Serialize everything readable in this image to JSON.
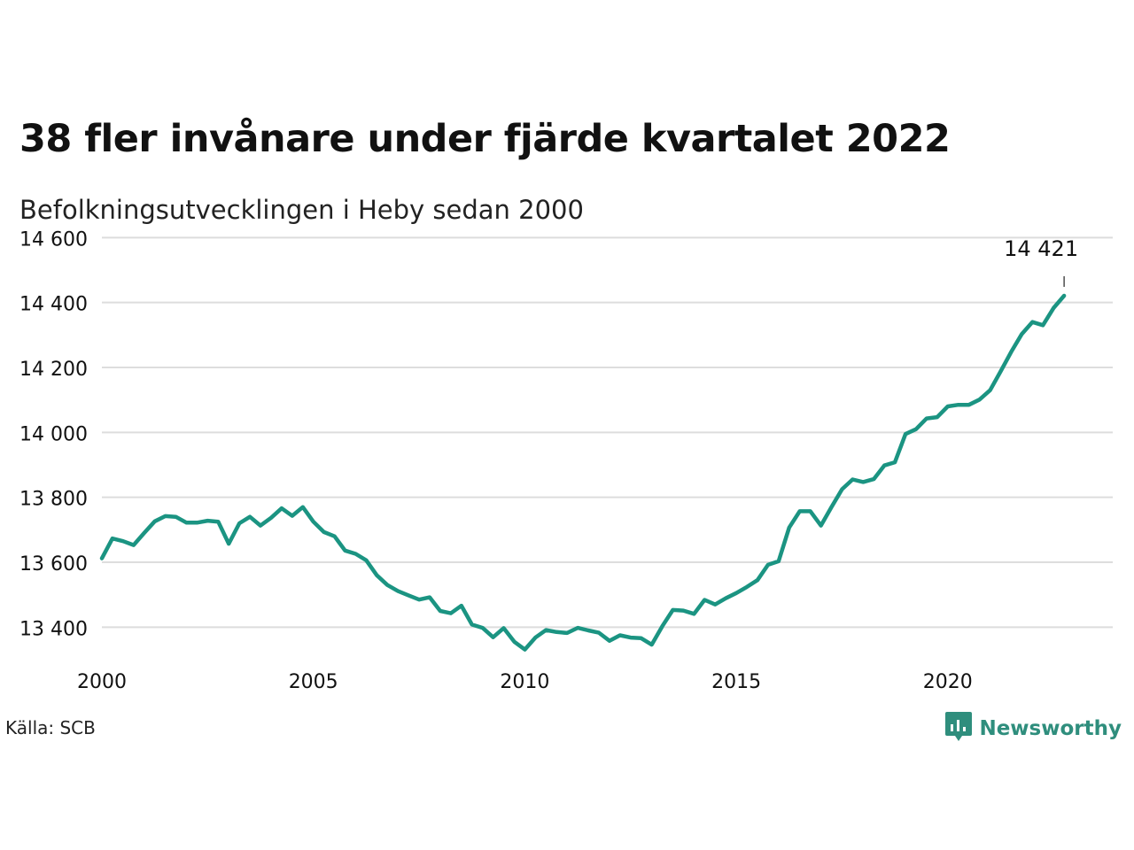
{
  "header": {
    "title": "38 fler invånare under fjärde kvartalet 2022",
    "subtitle": "Befolkningsutvecklingen i Heby sedan 2000"
  },
  "footer": {
    "source": "Källa: SCB",
    "brand": "Newsworthy"
  },
  "colors": {
    "line": "#1b9482",
    "grid": "#dddddd",
    "brand": "#2f8e7d"
  },
  "chart_data": {
    "type": "line",
    "title": "38 fler invånare under fjärde kvartalet 2022",
    "subtitle": "Befolkningsutvecklingen i Heby sedan 2000",
    "xlabel": "",
    "ylabel": "",
    "xlim": [
      2000,
      2023.9
    ],
    "ylim": [
      13300,
      14650
    ],
    "x_ticks": [
      2000,
      2005,
      2010,
      2015,
      2020
    ],
    "y_ticks": [
      13400,
      13600,
      13800,
      14000,
      14200,
      14400,
      14600
    ],
    "y_tick_labels": [
      "13 400",
      "13 600",
      "13 800",
      "14 000",
      "14 200",
      "14 400",
      "14 600"
    ],
    "grid": "horizontal",
    "end_annotation": "14 421",
    "series": [
      {
        "x": [
          2000.0,
          2000.25,
          2000.5,
          2000.75,
          2001.0,
          2001.25,
          2001.5,
          2001.75,
          2002.0,
          2002.25,
          2002.5,
          2002.75,
          2003.0,
          2003.25,
          2003.5,
          2003.75,
          2004.0,
          2004.25,
          2004.5,
          2004.75,
          2005.0,
          2005.25,
          2005.5,
          2005.75,
          2006.0,
          2006.25,
          2006.5,
          2006.75,
          2007.0,
          2007.25,
          2007.5,
          2007.75,
          2008.0,
          2008.25,
          2008.5,
          2008.75,
          2009.0,
          2009.25,
          2009.5,
          2009.75,
          2010.0,
          2010.25,
          2010.5,
          2010.75,
          2011.0,
          2011.25,
          2011.5,
          2011.75,
          2012.0,
          2012.25,
          2012.5,
          2012.75,
          2013.0,
          2013.25,
          2013.5,
          2013.75,
          2014.0,
          2014.25,
          2014.5,
          2014.75,
          2015.0,
          2015.25,
          2015.5,
          2015.75,
          2016.0,
          2016.25,
          2016.5,
          2016.75,
          2017.0,
          2017.25,
          2017.5,
          2017.75,
          2018.0,
          2018.25,
          2018.5,
          2018.75,
          2019.0,
          2019.25,
          2019.5,
          2019.75,
          2020.0,
          2020.25,
          2020.5,
          2020.75,
          2021.0,
          2021.25,
          2021.5,
          2021.75,
          2022.0,
          2022.25,
          2022.5,
          2022.75
        ],
        "values": [
          13612,
          13673,
          13665,
          13653,
          13690,
          13726,
          13742,
          13740,
          13722,
          13722,
          13728,
          13725,
          13657,
          13720,
          13740,
          13713,
          13737,
          13766,
          13743,
          13770,
          13725,
          13693,
          13680,
          13636,
          13626,
          13606,
          13560,
          13530,
          13511,
          13498,
          13485,
          13492,
          13450,
          13443,
          13466,
          13408,
          13398,
          13369,
          13397,
          13355,
          13331,
          13368,
          13391,
          13385,
          13382,
          13398,
          13390,
          13383,
          13358,
          13375,
          13368,
          13366,
          13346,
          13403,
          13453,
          13451,
          13441,
          13484,
          13470,
          13489,
          13505,
          13524,
          13545,
          13592,
          13603,
          13707,
          13757,
          13757,
          13713,
          13770,
          13825,
          13855,
          13847,
          13856,
          13898,
          13908,
          13995,
          14010,
          14043,
          14047,
          14080,
          14085,
          14085,
          14101,
          14130,
          14188,
          14248,
          14303,
          14340,
          14330,
          14383,
          14421
        ]
      }
    ]
  }
}
